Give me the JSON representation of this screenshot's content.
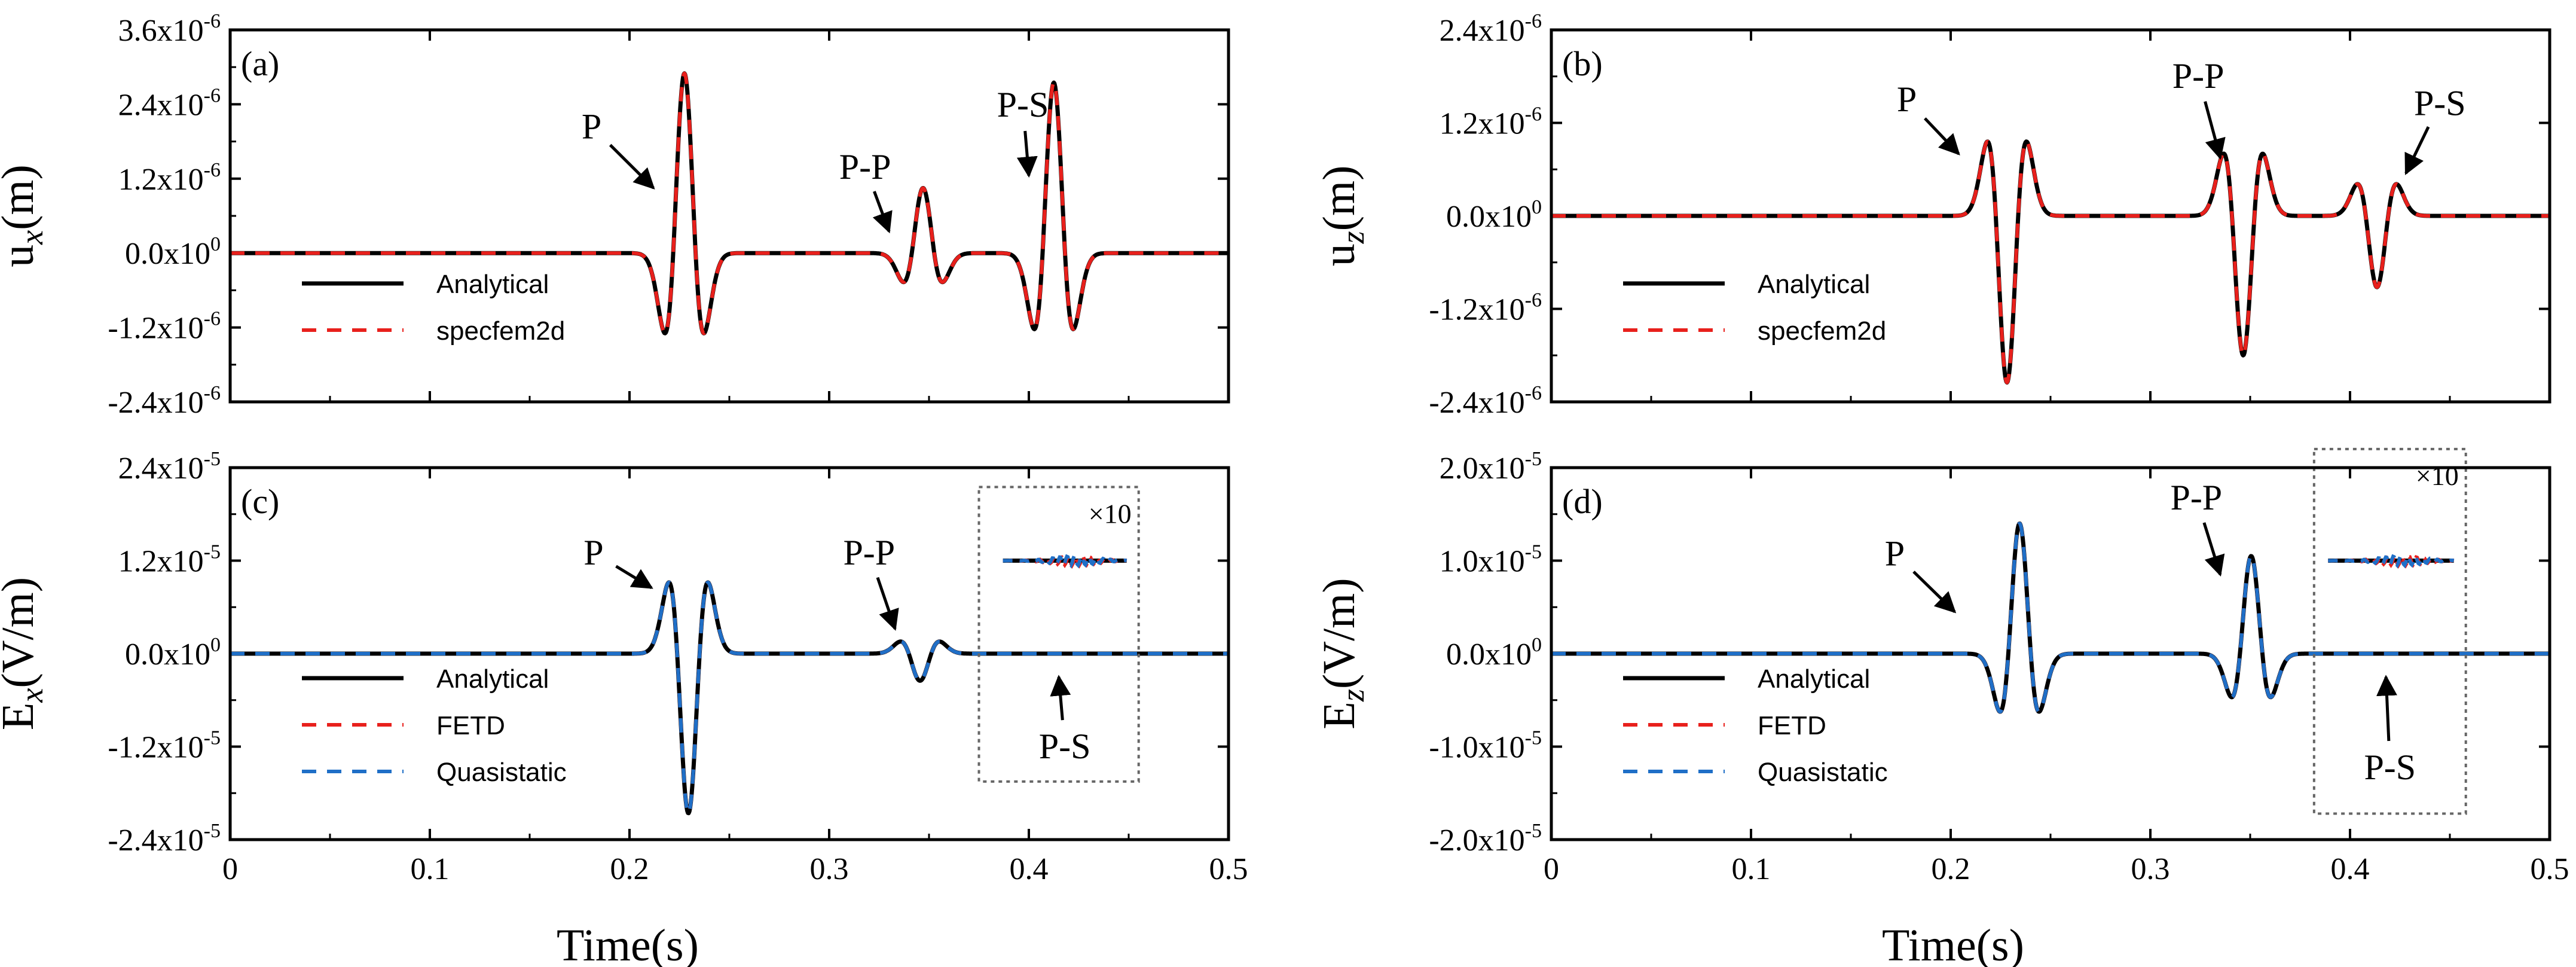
{
  "figure": {
    "xlabel": "Time(s)",
    "colors": {
      "analytical": "#000000",
      "specfem": "#e8201c",
      "fetd": "#e8201c",
      "quasi": "#1f6fc7",
      "box": "#666666"
    }
  },
  "chart_data": [
    {
      "id": "a",
      "type": "line",
      "panel_label": "(a)",
      "ylabel_main": "u",
      "ylabel_sub": "x",
      "ylabel_unit": "(m)",
      "xlim": [
        0,
        0.5
      ],
      "ylim": [
        -2.4e-06,
        3.6e-06
      ],
      "x_ticks": [
        "0",
        "0.1",
        "0.2",
        "0.3",
        "0.4",
        "0.5"
      ],
      "show_x_ticks": false,
      "y_ticks": [
        {
          "v": -2.4e-06,
          "m": "-2.4x10",
          "e": "-6"
        },
        {
          "v": -1.2e-06,
          "m": "-1.2x10",
          "e": "-6"
        },
        {
          "v": 0,
          "m": "0.0x10",
          "e": "0"
        },
        {
          "v": 1.2e-06,
          "m": "1.2x10",
          "e": "-6"
        },
        {
          "v": 2.4e-06,
          "m": "2.4x10",
          "e": "-6"
        },
        {
          "v": 3.6e-06,
          "m": "3.6x10",
          "e": "-6"
        }
      ],
      "pulses": [
        {
          "t0": 0.2275,
          "amp": 2.9e-06,
          "f": 40,
          "note": "P"
        },
        {
          "t0": 0.347,
          "amp": 1.05e-06,
          "f": 40,
          "note": "P-P"
        },
        {
          "t0": 0.4125,
          "amp": 2.75e-06,
          "f": 40,
          "note": "P-S"
        }
      ],
      "series": [
        {
          "name": "Analytical",
          "color": "#000000",
          "dash": "",
          "width": 7
        },
        {
          "name": "specfem2d",
          "color": "#e8201c",
          "dash": "24 18",
          "width": 6
        }
      ],
      "annotations": [
        {
          "text": "P",
          "tx": 0.181,
          "ty": 1.85e-06,
          "ax": 0.212,
          "ay": 1.05e-06
        },
        {
          "text": "P-P",
          "tx": 0.318,
          "ty": 1.2e-06,
          "ax": 0.33,
          "ay": 3.5e-07
        },
        {
          "text": "P-S",
          "tx": 0.397,
          "ty": 2.2e-06,
          "ax": 0.4,
          "ay": 1.25e-06
        }
      ]
    },
    {
      "id": "b",
      "type": "line",
      "panel_label": "(b)",
      "ylabel_main": "u",
      "ylabel_sub": "z",
      "ylabel_unit": "(m)",
      "xlim": [
        0,
        0.5
      ],
      "ylim": [
        -2.4e-06,
        2.4e-06
      ],
      "x_ticks": [
        "0",
        "0.1",
        "0.2",
        "0.3",
        "0.4",
        "0.5"
      ],
      "show_x_ticks": false,
      "y_ticks": [
        {
          "v": -2.4e-06,
          "m": "-2.4x10",
          "e": "-6"
        },
        {
          "v": -1.2e-06,
          "m": "-1.2x10",
          "e": "-6"
        },
        {
          "v": 0,
          "m": "0.0x10",
          "e": "0"
        },
        {
          "v": 1.2e-06,
          "m": "1.2x10",
          "e": "-6"
        },
        {
          "v": 2.4e-06,
          "m": "2.4x10",
          "e": "-6"
        }
      ],
      "pulses": [
        {
          "t0": 0.2282,
          "amp": -2.15e-06,
          "f": 40,
          "note": "P"
        },
        {
          "t0": 0.3465,
          "amp": -1.8e-06,
          "f": 40,
          "note": "P-P"
        },
        {
          "t0": 0.4135,
          "amp": -9.2e-07,
          "f": 40,
          "note": "P-S"
        }
      ],
      "series": [
        {
          "name": "Analytical",
          "color": "#000000",
          "dash": "",
          "width": 7
        },
        {
          "name": "specfem2d",
          "color": "#e8201c",
          "dash": "24 18",
          "width": 6
        }
      ],
      "annotations": [
        {
          "text": "P",
          "tx": 0.178,
          "ty": 1.35e-06,
          "ax": 0.204,
          "ay": 8e-07
        },
        {
          "text": "P-P",
          "tx": 0.324,
          "ty": 1.65e-06,
          "ax": 0.335,
          "ay": 7.5e-07
        },
        {
          "text": "P-S",
          "tx": 0.445,
          "ty": 1.3e-06,
          "ax": 0.428,
          "ay": 5.5e-07
        }
      ]
    },
    {
      "id": "c",
      "type": "line",
      "panel_label": "(c)",
      "ylabel_main": "E",
      "ylabel_sub": "x",
      "ylabel_unit": "(V/m)",
      "xlim": [
        0,
        0.5
      ],
      "ylim": [
        -2.4e-05,
        2.4e-05
      ],
      "x_ticks": [
        "0",
        "0.1",
        "0.2",
        "0.3",
        "0.4",
        "0.5"
      ],
      "show_x_ticks": true,
      "y_ticks": [
        {
          "v": -2.4e-05,
          "m": "-2.4x10",
          "e": "-5"
        },
        {
          "v": -1.2e-05,
          "m": "-1.2x10",
          "e": "-5"
        },
        {
          "v": 0,
          "m": "0.0x10",
          "e": "0"
        },
        {
          "v": 1.2e-05,
          "m": "1.2x10",
          "e": "-5"
        },
        {
          "v": 2.4e-05,
          "m": "2.4x10",
          "e": "-5"
        }
      ],
      "pulses": [
        {
          "t0": 0.2295,
          "amp": -2.06e-05,
          "f": 40,
          "note": "P"
        },
        {
          "t0": 0.3455,
          "amp": -3.5e-06,
          "f": 40,
          "note": "P-P"
        }
      ],
      "series": [
        {
          "name": "Analytical",
          "color": "#000000",
          "dash": "",
          "width": 7
        },
        {
          "name": "FETD",
          "color": "#e8201c",
          "dash": "24 18",
          "width": 6
        },
        {
          "name": "Quasistatic",
          "color": "#1f6fc7",
          "dash": "24 18",
          "width": 6
        }
      ],
      "inset": {
        "x0": 0.375,
        "x1": 0.455,
        "y0": -1.65e-05,
        "y1": 2.15e-05,
        "scale": "×10",
        "line_y": 1.2e-05,
        "line_x0": 0.387,
        "line_x1": 0.449
      },
      "annotations": [
        {
          "text": "P",
          "tx": 0.182,
          "ty": 1.15e-05,
          "ax": 0.211,
          "ay": 8.5e-06
        },
        {
          "text": "P-P",
          "tx": 0.32,
          "ty": 1.15e-05,
          "ax": 0.333,
          "ay": 3.2e-06
        },
        {
          "text": "P-S",
          "tx": 0.418,
          "ty": -1.35e-05,
          "ax": 0.415,
          "ay": -3e-06
        }
      ]
    },
    {
      "id": "d",
      "type": "line",
      "panel_label": "(d)",
      "ylabel_main": "E",
      "ylabel_sub": "z",
      "ylabel_unit": "(V/m)",
      "xlim": [
        0,
        0.5
      ],
      "ylim": [
        -2e-05,
        2e-05
      ],
      "x_ticks": [
        "0",
        "0.1",
        "0.2",
        "0.3",
        "0.4",
        "0.5"
      ],
      "show_x_ticks": true,
      "y_ticks": [
        {
          "v": -2e-05,
          "m": "-2.0x10",
          "e": "-5"
        },
        {
          "v": -1e-05,
          "m": "-1.0x10",
          "e": "-5"
        },
        {
          "v": 0,
          "m": "0.0x10",
          "e": "0"
        },
        {
          "v": 1e-05,
          "m": "1.0x10",
          "e": "-5"
        },
        {
          "v": 2e-05,
          "m": "2.0x10",
          "e": "-5"
        }
      ],
      "pulses": [
        {
          "t0": 0.2345,
          "amp": 1.4e-05,
          "f": 40,
          "note": "P"
        },
        {
          "t0": 0.3505,
          "amp": 1.05e-05,
          "f": 40,
          "note": "P-P"
        }
      ],
      "series": [
        {
          "name": "Analytical",
          "color": "#000000",
          "dash": "",
          "width": 7
        },
        {
          "name": "FETD",
          "color": "#e8201c",
          "dash": "24 18",
          "width": 6
        },
        {
          "name": "Quasistatic",
          "color": "#1f6fc7",
          "dash": "24 18",
          "width": 6
        }
      ],
      "inset": {
        "x0": 0.382,
        "x1": 0.458,
        "y0": -1.72e-05,
        "y1": 2.2e-05,
        "scale": "×10",
        "line_y": 1e-05,
        "line_x0": 0.389,
        "line_x1": 0.452
      },
      "annotations": [
        {
          "text": "P",
          "tx": 0.172,
          "ty": 9.5e-06,
          "ax": 0.202,
          "ay": 4.5e-06
        },
        {
          "text": "P-P",
          "tx": 0.323,
          "ty": 1.55e-05,
          "ax": 0.335,
          "ay": 8.5e-06
        },
        {
          "text": "P-S",
          "tx": 0.42,
          "ty": -1.35e-05,
          "ax": 0.418,
          "ay": -2.5e-06
        }
      ]
    }
  ]
}
